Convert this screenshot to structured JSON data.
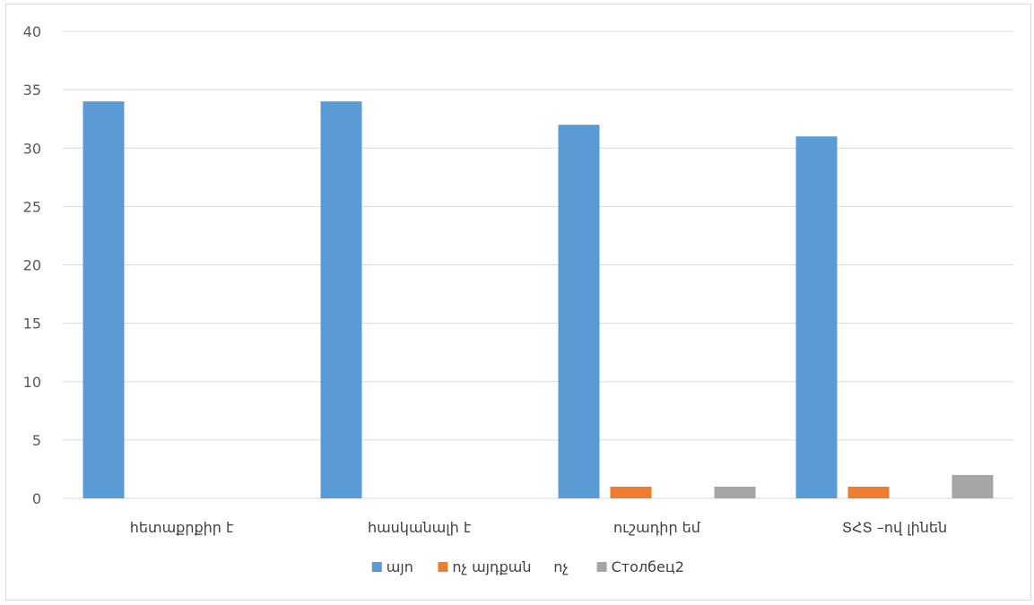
{
  "chart_data": {
    "type": "bar",
    "categories": [
      "հետաքրքիր է",
      "հասկանալի է",
      "ուշադիր եմ",
      "ՏՀՏ –ով լինեն"
    ],
    "series": [
      {
        "name": "այո",
        "values": [
          34,
          34,
          32,
          31
        ],
        "color": "#5b9bd5"
      },
      {
        "name": "ոչ այդքան",
        "values": [
          0,
          0,
          1,
          1
        ],
        "color": "#ed7d31"
      },
      {
        "name": "ոչ",
        "values": [
          0,
          0,
          0,
          0
        ],
        "color": "#ffc000"
      },
      {
        "name": "Столбец2",
        "values": [
          0,
          0,
          1,
          2
        ],
        "color": "#a5a5a5"
      }
    ],
    "ylim": [
      0,
      40
    ],
    "yticks": [
      0,
      5,
      10,
      15,
      20,
      25,
      30,
      35,
      40
    ],
    "grid": true,
    "legend_position": "bottom",
    "legend_markers": [
      true,
      true,
      false,
      true
    ]
  }
}
